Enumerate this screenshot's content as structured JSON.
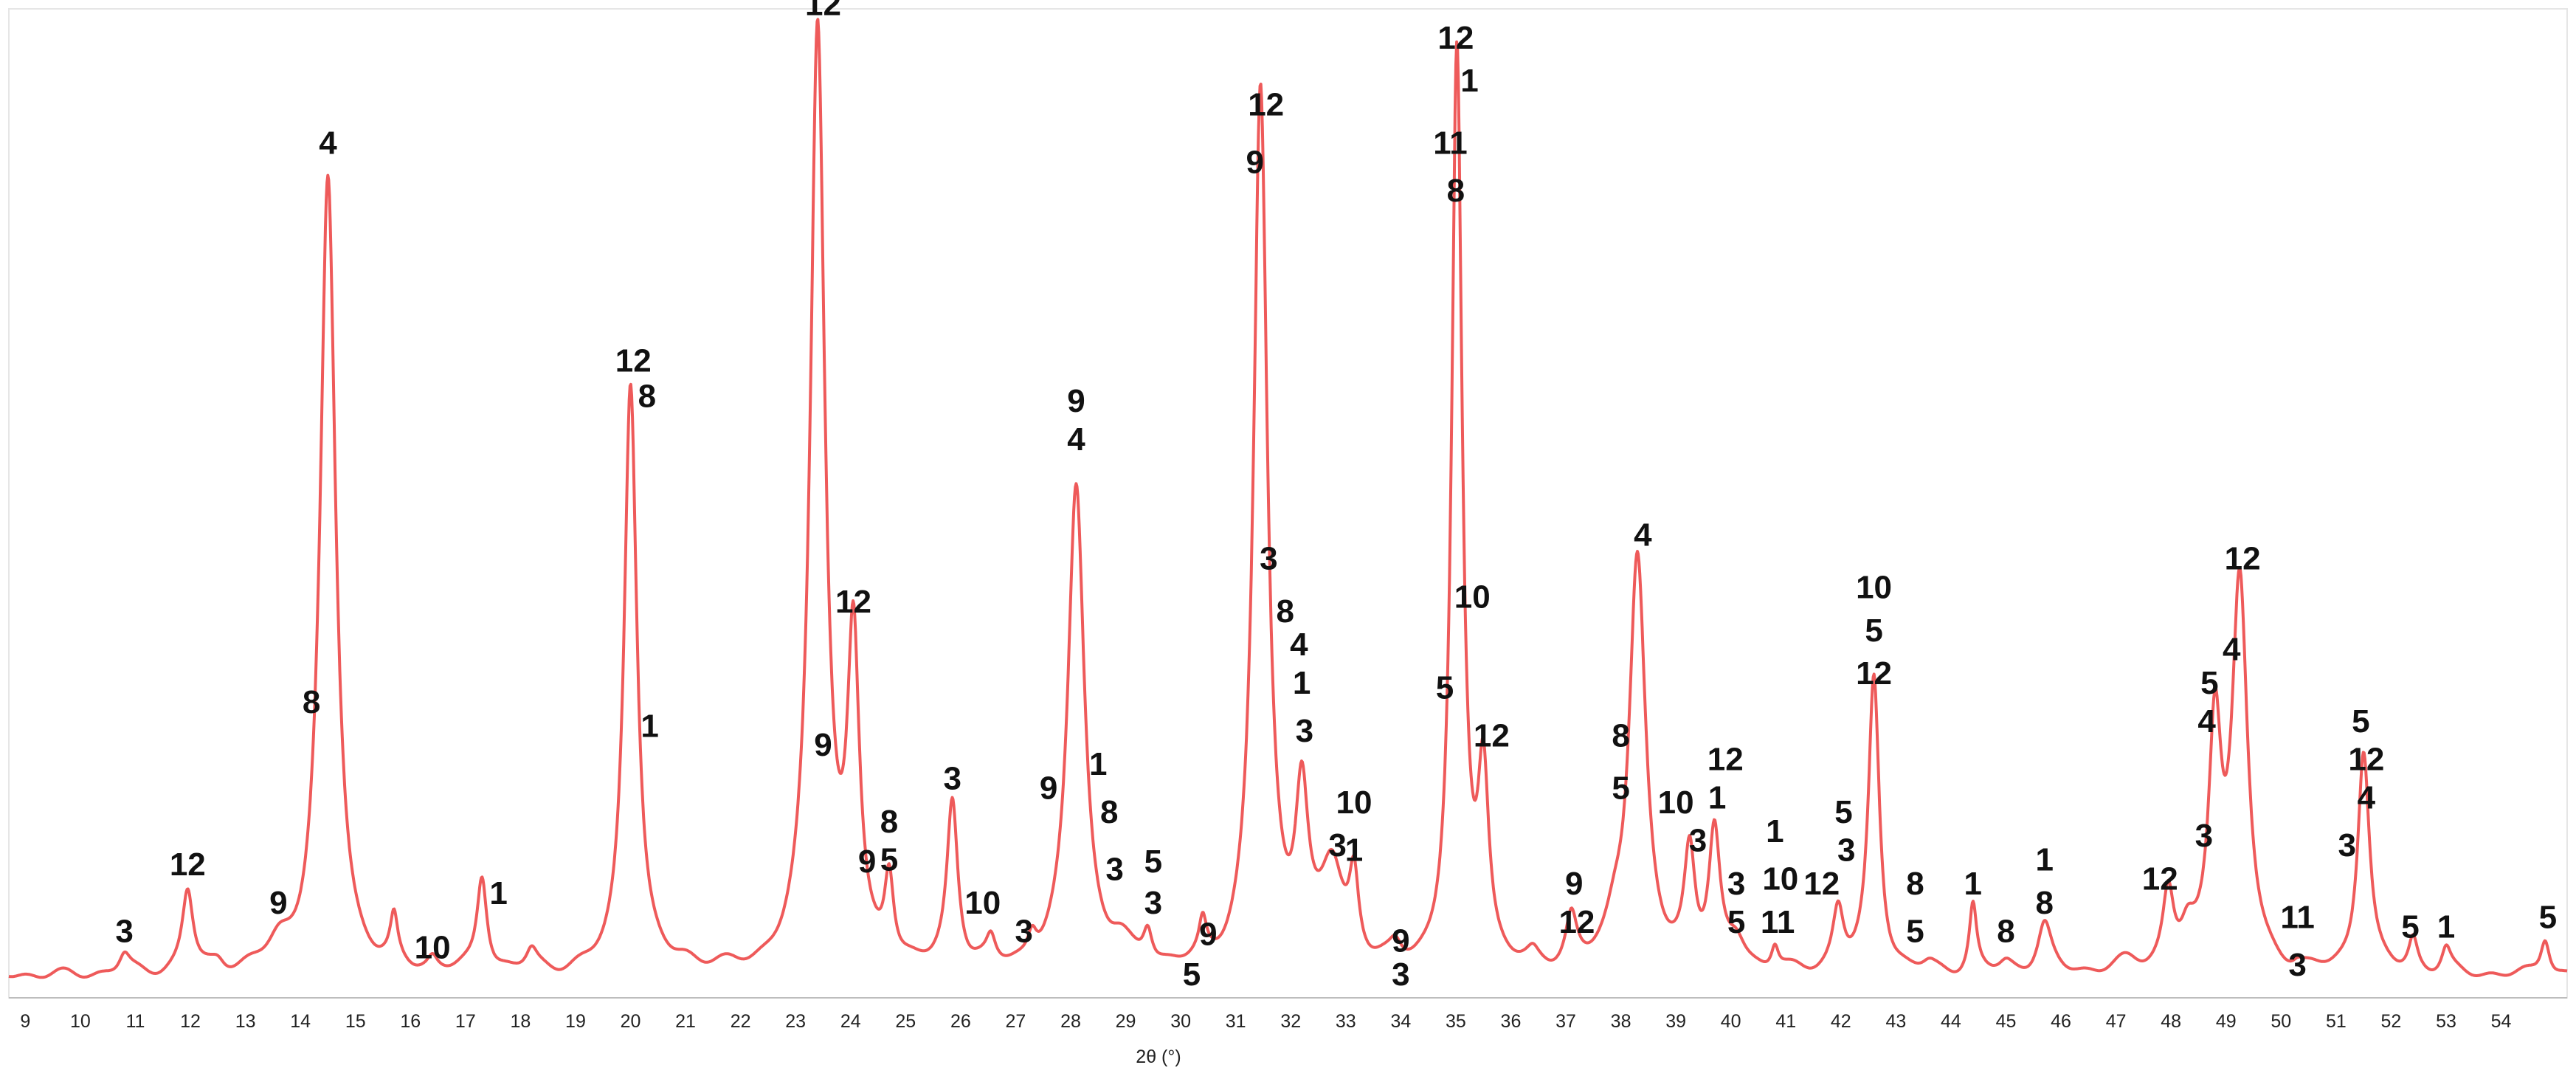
{
  "chart_data": {
    "type": "line",
    "xlabel": "2θ (°)",
    "title": "",
    "ylabel": "",
    "xlim": [
      8.7,
      55.2
    ],
    "ylim": [
      0,
      100
    ],
    "grid": false,
    "legend": "none",
    "line_color": "#ee5a5a",
    "x_ticks": [
      9,
      10,
      11,
      12,
      13,
      14,
      15,
      16,
      17,
      18,
      19,
      20,
      21,
      22,
      23,
      24,
      25,
      26,
      27,
      28,
      29,
      30,
      31,
      32,
      33,
      34,
      35,
      36,
      37,
      38,
      39,
      40,
      41,
      42,
      43,
      44,
      45,
      46,
      47,
      48,
      49,
      50,
      51,
      52,
      53,
      54
    ],
    "background": 1.0,
    "peaks": [
      {
        "x": 10.8,
        "y": 2.0,
        "w": 0.12
      },
      {
        "x": 11.95,
        "y": 8.5,
        "w": 0.12
      },
      {
        "x": 12.5,
        "y": 1.0,
        "w": 0.15
      },
      {
        "x": 13.6,
        "y": 2.2,
        "w": 0.25
      },
      {
        "x": 14.5,
        "y": 83.0,
        "w": 0.17
      },
      {
        "x": 15.7,
        "y": 4.5,
        "w": 0.08
      },
      {
        "x": 16.4,
        "y": 1.2,
        "w": 0.1
      },
      {
        "x": 17.3,
        "y": 10.0,
        "w": 0.11
      },
      {
        "x": 18.2,
        "y": 2.0,
        "w": 0.12
      },
      {
        "x": 20.0,
        "y": 62.0,
        "w": 0.14
      },
      {
        "x": 21.0,
        "y": 0.8,
        "w": 0.3
      },
      {
        "x": 23.4,
        "y": 99.0,
        "w": 0.16
      },
      {
        "x": 24.05,
        "y": 33.0,
        "w": 0.13
      },
      {
        "x": 24.7,
        "y": 9.0,
        "w": 0.1
      },
      {
        "x": 25.85,
        "y": 17.5,
        "w": 0.12
      },
      {
        "x": 26.55,
        "y": 2.5,
        "w": 0.1
      },
      {
        "x": 27.3,
        "y": 2.5,
        "w": 0.1
      },
      {
        "x": 28.1,
        "y": 51.0,
        "w": 0.18
      },
      {
        "x": 28.9,
        "y": 2.0,
        "w": 0.25
      },
      {
        "x": 29.4,
        "y": 3.5,
        "w": 0.1
      },
      {
        "x": 30.4,
        "y": 3.5,
        "w": 0.08
      },
      {
        "x": 31.45,
        "y": 92.0,
        "w": 0.15
      },
      {
        "x": 32.2,
        "y": 17.0,
        "w": 0.14
      },
      {
        "x": 32.75,
        "y": 10.0,
        "w": 0.25
      },
      {
        "x": 33.15,
        "y": 8.0,
        "w": 0.1
      },
      {
        "x": 33.9,
        "y": 1.5,
        "w": 0.12
      },
      {
        "x": 35.02,
        "y": 95.5,
        "w": 0.115
      },
      {
        "x": 35.5,
        "y": 19.5,
        "w": 0.12
      },
      {
        "x": 36.4,
        "y": 1.0,
        "w": 0.12
      },
      {
        "x": 37.1,
        "y": 5.0,
        "w": 0.12
      },
      {
        "x": 37.9,
        "y": 3.5,
        "w": 0.2
      },
      {
        "x": 38.3,
        "y": 43.0,
        "w": 0.18
      },
      {
        "x": 39.25,
        "y": 12.0,
        "w": 0.12
      },
      {
        "x": 39.7,
        "y": 13.5,
        "w": 0.12
      },
      {
        "x": 40.1,
        "y": 3.0,
        "w": 0.2
      },
      {
        "x": 40.8,
        "y": 2.5,
        "w": 0.08
      },
      {
        "x": 41.95,
        "y": 6.5,
        "w": 0.12
      },
      {
        "x": 42.6,
        "y": 31.0,
        "w": 0.12
      },
      {
        "x": 43.6,
        "y": 0.8,
        "w": 0.15
      },
      {
        "x": 44.4,
        "y": 7.0,
        "w": 0.08
      },
      {
        "x": 45.0,
        "y": 1.0,
        "w": 0.15
      },
      {
        "x": 45.7,
        "y": 5.0,
        "w": 0.15
      },
      {
        "x": 47.2,
        "y": 1.0,
        "w": 0.3
      },
      {
        "x": 47.95,
        "y": 8.0,
        "w": 0.12
      },
      {
        "x": 48.3,
        "y": 3.0,
        "w": 0.15
      },
      {
        "x": 48.8,
        "y": 25.0,
        "w": 0.14
      },
      {
        "x": 49.25,
        "y": 40.0,
        "w": 0.17
      },
      {
        "x": 50.3,
        "y": 0.5,
        "w": 0.1
      },
      {
        "x": 51.5,
        "y": 23.5,
        "w": 0.13
      },
      {
        "x": 52.4,
        "y": 3.5,
        "w": 0.1
      },
      {
        "x": 53.0,
        "y": 2.5,
        "w": 0.1
      },
      {
        "x": 54.8,
        "y": 4.0,
        "w": 0.1
      }
    ],
    "annotations": [
      {
        "text": "3",
        "x": 10.8,
        "y": 4.5
      },
      {
        "text": "12",
        "x": 11.95,
        "y": 11.5
      },
      {
        "text": "9",
        "x": 13.6,
        "y": 7.5
      },
      {
        "text": "8",
        "x": 14.2,
        "y": 28.5
      },
      {
        "text": "4",
        "x": 14.5,
        "y": 87.0
      },
      {
        "text": "10",
        "x": 16.4,
        "y": 2.8
      },
      {
        "text": "1",
        "x": 17.6,
        "y": 8.5
      },
      {
        "text": "12",
        "x": 20.05,
        "y": 64.2
      },
      {
        "text": "8",
        "x": 20.3,
        "y": 60.5
      },
      {
        "text": "1",
        "x": 20.35,
        "y": 26.0
      },
      {
        "text": "12",
        "x": 23.5,
        "y": 101.5
      },
      {
        "text": "9",
        "x": 23.5,
        "y": 24.0
      },
      {
        "text": "12",
        "x": 24.05,
        "y": 39.0
      },
      {
        "text": "8",
        "x": 24.7,
        "y": 16.0
      },
      {
        "text": "9",
        "x": 24.3,
        "y": 11.8
      },
      {
        "text": "5",
        "x": 24.7,
        "y": 12.0
      },
      {
        "text": "3",
        "x": 25.85,
        "y": 20.5
      },
      {
        "text": "10",
        "x": 26.4,
        "y": 7.5
      },
      {
        "text": "3",
        "x": 27.15,
        "y": 4.5
      },
      {
        "text": "9",
        "x": 28.1,
        "y": 60.0
      },
      {
        "text": "4",
        "x": 28.1,
        "y": 56.0
      },
      {
        "text": "9",
        "x": 27.6,
        "y": 19.5
      },
      {
        "text": "1",
        "x": 28.5,
        "y": 22.0
      },
      {
        "text": "8",
        "x": 28.7,
        "y": 17.0
      },
      {
        "text": "3",
        "x": 28.8,
        "y": 11.0
      },
      {
        "text": "5",
        "x": 29.5,
        "y": 11.8
      },
      {
        "text": "3",
        "x": 29.5,
        "y": 7.5
      },
      {
        "text": "9",
        "x": 30.5,
        "y": 4.2
      },
      {
        "text": "5",
        "x": 30.2,
        "y": 0.0
      },
      {
        "text": "12",
        "x": 31.55,
        "y": 91.0
      },
      {
        "text": "9",
        "x": 31.35,
        "y": 85.0
      },
      {
        "text": "3",
        "x": 31.6,
        "y": 43.5
      },
      {
        "text": "8",
        "x": 31.9,
        "y": 38.0
      },
      {
        "text": "4",
        "x": 32.15,
        "y": 34.5
      },
      {
        "text": "1",
        "x": 32.2,
        "y": 30.5
      },
      {
        "text": "3",
        "x": 32.25,
        "y": 25.5
      },
      {
        "text": "10",
        "x": 33.15,
        "y": 18.0
      },
      {
        "text": "3",
        "x": 32.85,
        "y": 13.5
      },
      {
        "text": "1",
        "x": 33.15,
        "y": 13.0
      },
      {
        "text": "9",
        "x": 34.0,
        "y": 3.5
      },
      {
        "text": "3",
        "x": 34.0,
        "y": 0.0
      },
      {
        "text": "12",
        "x": 35.0,
        "y": 98.0
      },
      {
        "text": "1",
        "x": 35.25,
        "y": 93.5
      },
      {
        "text": "11",
        "x": 34.9,
        "y": 87.0
      },
      {
        "text": "8",
        "x": 35.0,
        "y": 82.0
      },
      {
        "text": "10",
        "x": 35.3,
        "y": 39.5
      },
      {
        "text": "5",
        "x": 34.8,
        "y": 30.0
      },
      {
        "text": "12",
        "x": 35.65,
        "y": 25.0
      },
      {
        "text": "9",
        "x": 37.15,
        "y": 9.5
      },
      {
        "text": "12",
        "x": 37.2,
        "y": 5.5
      },
      {
        "text": "8",
        "x": 38.0,
        "y": 25.0
      },
      {
        "text": "5",
        "x": 38.0,
        "y": 19.5
      },
      {
        "text": "4",
        "x": 38.4,
        "y": 46.0
      },
      {
        "text": "10",
        "x": 39.0,
        "y": 18.0
      },
      {
        "text": "3",
        "x": 39.4,
        "y": 14.0
      },
      {
        "text": "12",
        "x": 39.9,
        "y": 22.5
      },
      {
        "text": "1",
        "x": 39.75,
        "y": 18.5
      },
      {
        "text": "3",
        "x": 40.1,
        "y": 9.5
      },
      {
        "text": "5",
        "x": 40.1,
        "y": 5.5
      },
      {
        "text": "1",
        "x": 40.8,
        "y": 15.0
      },
      {
        "text": "10",
        "x": 40.9,
        "y": 10.0
      },
      {
        "text": "11",
        "x": 40.85,
        "y": 5.5
      },
      {
        "text": "12",
        "x": 41.65,
        "y": 9.5
      },
      {
        "text": "5",
        "x": 42.05,
        "y": 17.0
      },
      {
        "text": "3",
        "x": 42.1,
        "y": 13.0
      },
      {
        "text": "10",
        "x": 42.6,
        "y": 40.5
      },
      {
        "text": "5",
        "x": 42.6,
        "y": 36.0
      },
      {
        "text": "12",
        "x": 42.6,
        "y": 31.5
      },
      {
        "text": "8",
        "x": 43.35,
        "y": 9.5
      },
      {
        "text": "5",
        "x": 43.35,
        "y": 4.5
      },
      {
        "text": "1",
        "x": 44.4,
        "y": 9.5
      },
      {
        "text": "8",
        "x": 45.0,
        "y": 4.5
      },
      {
        "text": "1",
        "x": 45.7,
        "y": 12.0
      },
      {
        "text": "8",
        "x": 45.7,
        "y": 7.5
      },
      {
        "text": "12",
        "x": 47.8,
        "y": 10.0
      },
      {
        "text": "3",
        "x": 48.6,
        "y": 14.5
      },
      {
        "text": "5",
        "x": 48.7,
        "y": 30.5
      },
      {
        "text": "4",
        "x": 48.65,
        "y": 26.5
      },
      {
        "text": "4",
        "x": 49.1,
        "y": 34.0
      },
      {
        "text": "12",
        "x": 49.3,
        "y": 43.5
      },
      {
        "text": "11",
        "x": 50.3,
        "y": 6.0
      },
      {
        "text": "3",
        "x": 50.3,
        "y": 1.0
      },
      {
        "text": "3",
        "x": 51.2,
        "y": 13.5
      },
      {
        "text": "5",
        "x": 51.45,
        "y": 26.5
      },
      {
        "text": "12",
        "x": 51.55,
        "y": 22.5
      },
      {
        "text": "4",
        "x": 51.55,
        "y": 18.5
      },
      {
        "text": "5",
        "x": 52.35,
        "y": 5.0
      },
      {
        "text": "1",
        "x": 53.0,
        "y": 5.0
      },
      {
        "text": "5",
        "x": 54.85,
        "y": 6.0
      }
    ]
  }
}
